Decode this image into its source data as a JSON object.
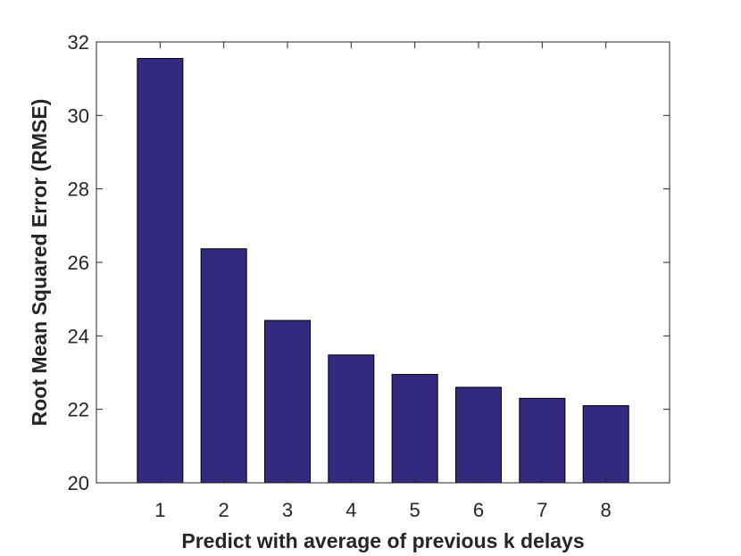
{
  "chart_data": {
    "type": "bar",
    "categories": [
      "1",
      "2",
      "3",
      "4",
      "5",
      "6",
      "7",
      "8"
    ],
    "values": [
      31.55,
      26.37,
      24.42,
      23.48,
      22.95,
      22.6,
      22.3,
      22.1
    ],
    "title": "",
    "xlabel": "Predict with average of previous k delays",
    "ylabel": "Root Mean Squared Error (RMSE)",
    "ylim": [
      20,
      32
    ],
    "xlim": [
      0,
      9
    ],
    "yticks": [
      20,
      22,
      24,
      26,
      28,
      30,
      32
    ],
    "bar_color": "#332a7f",
    "grid": false,
    "legend": "none"
  }
}
